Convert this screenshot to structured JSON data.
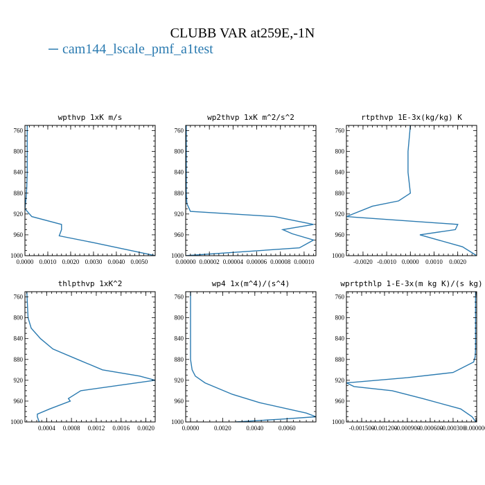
{
  "title": "CLUBB VAR at259E,-1N",
  "legend": {
    "label": "cam144_lscale_pmf_a1test",
    "color": "#2a7ab0"
  },
  "series_color": "#2a7ab0",
  "chart_data": [
    {
      "type": "line",
      "title": "wpthvp  1xK m/s",
      "ylim": [
        1000,
        750
      ],
      "yticks": [
        760,
        800,
        840,
        880,
        920,
        960,
        1000
      ],
      "xlim": [
        0,
        0.0057
      ],
      "xticks": [
        0.0,
        0.001,
        0.002,
        0.003,
        0.004,
        0.005
      ],
      "xtick_labels": [
        "0.0000",
        "0.0010",
        "0.0020",
        "0.0030",
        "0.0040",
        "0.0050"
      ],
      "series": [
        {
          "x": [
            0.0001,
            0.0001,
            0.0001,
            8e-05,
            5e-05,
            0.0,
            0.0003,
            0.0016,
            0.0016,
            0.0015,
            0.003,
            0.0057
          ],
          "y": [
            750,
            800,
            840,
            870,
            890,
            910,
            925,
            940,
            950,
            962,
            975,
            1000
          ]
        }
      ]
    },
    {
      "type": "line",
      "title": "wp2thvp  1xK m^2/s^2",
      "ylim": [
        1000,
        750
      ],
      "yticks": [
        760,
        800,
        840,
        880,
        920,
        960,
        1000
      ],
      "xlim": [
        0,
        0.00011
      ],
      "xticks": [
        0.0,
        2e-05,
        4e-05,
        6e-05,
        8e-05,
        0.0001
      ],
      "xtick_labels": [
        "0.00000",
        "0.00002",
        "0.00004",
        "0.00006",
        "0.00008",
        "0.00010"
      ],
      "series": [
        {
          "x": [
            5e-07,
            5e-07,
            5e-07,
            5e-07,
            1e-06,
            4e-06,
            7.5e-05,
            0.000108,
            8.2e-05,
            9e-05,
            0.000108,
            9.6e-05,
            0.0
          ],
          "y": [
            750,
            800,
            840,
            880,
            900,
            915,
            925,
            940,
            950,
            958,
            970,
            985,
            1000
          ]
        }
      ]
    },
    {
      "type": "line",
      "title": "rtpthvp  1E-3x(kg/kg) K",
      "ylim": [
        1000,
        750
      ],
      "yticks": [
        760,
        800,
        840,
        880,
        920,
        960,
        1000
      ],
      "xlim": [
        -0.0027,
        0.0028
      ],
      "xticks": [
        -0.002,
        -0.001,
        0.0,
        0.001,
        0.002
      ],
      "xtick_labels": [
        "-0.0020",
        "-0.0010",
        "0.0000",
        "0.0010",
        "0.0020"
      ],
      "series": [
        {
          "x": [
            0.0,
            -0.0001,
            -0.0001,
            0.0,
            -0.0005,
            -0.0016,
            -0.0027,
            0.002,
            0.0019,
            0.0004,
            0.0022,
            0.0028
          ],
          "y": [
            750,
            800,
            840,
            880,
            895,
            905,
            925,
            940,
            950,
            960,
            983,
            1000
          ]
        }
      ]
    },
    {
      "type": "line",
      "title": "thlpthvp  1xK^2",
      "ylim": [
        1000,
        750
      ],
      "yticks": [
        760,
        800,
        840,
        880,
        920,
        960,
        1000
      ],
      "xlim": [
        5e-05,
        0.00215
      ],
      "xticks": [
        0.0004,
        0.0008,
        0.0012,
        0.0016,
        0.002
      ],
      "xtick_labels": [
        "0.0004",
        "0.0008",
        "0.0012",
        "0.0016",
        "0.0020"
      ],
      "series": [
        {
          "x": [
            8e-05,
            0.0001,
            0.00015,
            0.0003,
            0.0005,
            0.0009,
            0.0013,
            0.0019,
            0.00215,
            0.00095,
            0.00075,
            0.00078,
            0.00045,
            0.00025,
            0.00025,
            0.00028
          ],
          "y": [
            750,
            800,
            820,
            840,
            860,
            880,
            900,
            912,
            920,
            940,
            955,
            960,
            975,
            985,
            990,
            1000
          ]
        }
      ]
    },
    {
      "type": "line",
      "title": "wp4  1x(m^4)/(s^4)",
      "ylim": [
        1000,
        750
      ],
      "yticks": [
        760,
        800,
        840,
        880,
        920,
        960,
        1000
      ],
      "xlim": [
        -0.0003,
        0.0078
      ],
      "xticks": [
        0.0,
        0.002,
        0.004,
        0.006
      ],
      "xtick_labels": [
        "0.0000",
        "0.0020",
        "0.0040",
        "0.0060"
      ],
      "series": [
        {
          "x": [
            0.0,
            0.0,
            0.0,
            0.0001,
            0.0003,
            0.0009,
            0.0026,
            0.0043,
            0.0072,
            0.0078,
            0.0055,
            0.0028
          ],
          "y": [
            750,
            800,
            880,
            900,
            912,
            925,
            947,
            963,
            983,
            990,
            995,
            1000
          ]
        }
      ]
    },
    {
      "type": "line",
      "title": "wprtpthlp  1-E-3x(m kg K)/(s kg)",
      "ylim": [
        1000,
        750
      ],
      "yticks": [
        760,
        800,
        840,
        880,
        920,
        960,
        1000
      ],
      "xlim": [
        -0.0017,
        1e-05
      ],
      "xticks": [
        -0.0015,
        -0.0012,
        -0.0009,
        -0.0006,
        -0.0003,
        0.0
      ],
      "xtick_labels": [
        "-0.001500",
        "-0.001200",
        "-0.000900",
        "-0.000600",
        "-0.000300",
        "0.000000"
      ],
      "series": [
        {
          "x": [
            -5e-06,
            -5e-06,
            -5e-06,
            -1e-05,
            -3e-05,
            -0.0003,
            -0.0009,
            -0.0017,
            -0.0016,
            -0.0011,
            -0.0007,
            -0.0002,
            -5e-05,
            0.0
          ],
          "y": [
            750,
            800,
            860,
            875,
            885,
            905,
            915,
            925,
            932,
            940,
            955,
            975,
            990,
            1000
          ]
        }
      ]
    }
  ]
}
